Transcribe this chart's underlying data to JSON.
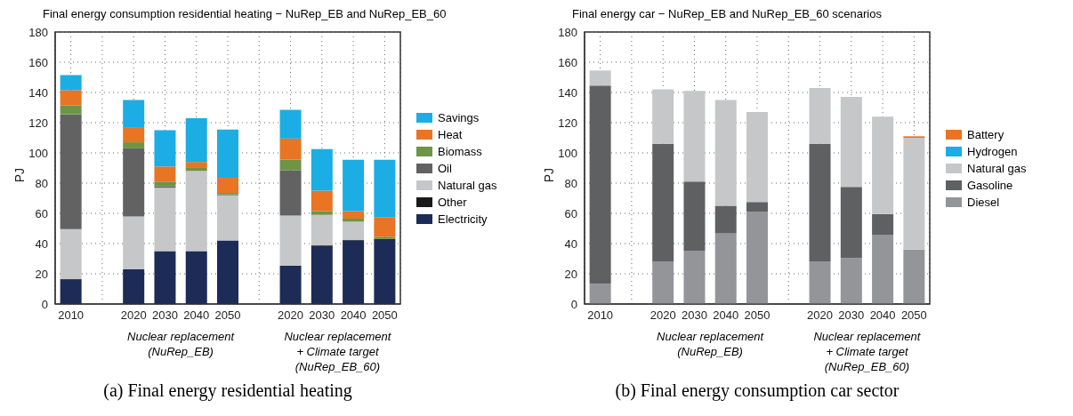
{
  "chart_data": [
    {
      "type": "bar",
      "stacked": true,
      "title": "Final energy consumption residential heating − NuRep_EB and NuRep_EB_60",
      "ylabel": "PJ",
      "categories": [
        "2010",
        null,
        "2020",
        "2030",
        "2040",
        "2050",
        null,
        "2020",
        "2030",
        "2040",
        "2050"
      ],
      "ylim": [
        0,
        180
      ],
      "yticks": [
        0,
        20,
        40,
        60,
        80,
        100,
        120,
        140,
        160,
        180
      ],
      "grid": true,
      "legend": "right",
      "series": [
        {
          "name": "Electricity",
          "color": "#1d2b57",
          "values": [
            16,
            null,
            23,
            35,
            35,
            42,
            null,
            25.5,
            38.5,
            42,
            43
          ]
        },
        {
          "name": "Other",
          "color": "#1a1a1a",
          "values": [
            0.5,
            null,
            0,
            0,
            0,
            0,
            null,
            0,
            0.5,
            0.5,
            0
          ]
        },
        {
          "name": "Natural gas",
          "color": "#c6c7c8",
          "values": [
            33,
            null,
            35,
            42,
            53,
            30,
            null,
            33,
            20,
            12,
            0
          ]
        },
        {
          "name": "Oil",
          "color": "#626262",
          "values": [
            76,
            null,
            45,
            1,
            0,
            0.5,
            null,
            30,
            0,
            0,
            0
          ]
        },
        {
          "name": "Biomass",
          "color": "#6e9445",
          "values": [
            6,
            null,
            4,
            3,
            2.5,
            1,
            null,
            7,
            2.5,
            2,
            1.5
          ]
        },
        {
          "name": "Heat",
          "color": "#e87424",
          "values": [
            10,
            null,
            10,
            10,
            3.5,
            10,
            null,
            14,
            13.5,
            5,
            13
          ]
        },
        {
          "name": "Savings",
          "color": "#1badE3",
          "values": [
            10,
            null,
            18,
            24,
            29,
            32,
            null,
            19,
            27.5,
            34,
            38
          ]
        }
      ],
      "annotations": [
        "Nuclear replacement\n(NuRep_EB)",
        "Nuclear replacement\n+ Climate target\n(NuRep_EB_60)",
        "(a) Final energy residential heating"
      ]
    },
    {
      "type": "bar",
      "stacked": true,
      "title": "Final energy car − NuRep_EB and NuRep_EB_60 scenarios",
      "ylabel": "PJ",
      "categories": [
        "2010",
        null,
        "2020",
        "2030",
        "2040",
        "2050",
        null,
        "2020",
        "2030",
        "2040",
        "2050"
      ],
      "ylim": [
        0,
        180
      ],
      "yticks": [
        0,
        20,
        40,
        60,
        80,
        100,
        120,
        140,
        160,
        180
      ],
      "grid": true,
      "legend": "right",
      "series": [
        {
          "name": "Diesel",
          "color": "#939598",
          "values": [
            13.5,
            null,
            28,
            35,
            47,
            61,
            null,
            28,
            30.5,
            45.5,
            36
          ]
        },
        {
          "name": "Gasoline",
          "color": "#5f6062",
          "values": [
            131,
            null,
            78,
            46,
            18,
            6.5,
            null,
            78,
            47,
            14,
            0
          ]
        },
        {
          "name": "Natural gas",
          "color": "#c6c7c8",
          "values": [
            10,
            null,
            36,
            60,
            70,
            59.5,
            null,
            37,
            59.5,
            64.5,
            74
          ]
        },
        {
          "name": "Hydrogen",
          "color": "#1badE3",
          "values": [
            0,
            null,
            0,
            0,
            0,
            0,
            null,
            0,
            0,
            0,
            0
          ]
        },
        {
          "name": "Battery",
          "color": "#e87424",
          "values": [
            0,
            null,
            0,
            0,
            0,
            0,
            null,
            0,
            0,
            0,
            1
          ]
        }
      ],
      "annotations": [
        "Nuclear replacement\n(NuRep_EB)",
        "Nuclear replacement\n+ Climate target\n(NuRep_EB_60)",
        "(b) Final energy consumption car sector"
      ]
    }
  ]
}
